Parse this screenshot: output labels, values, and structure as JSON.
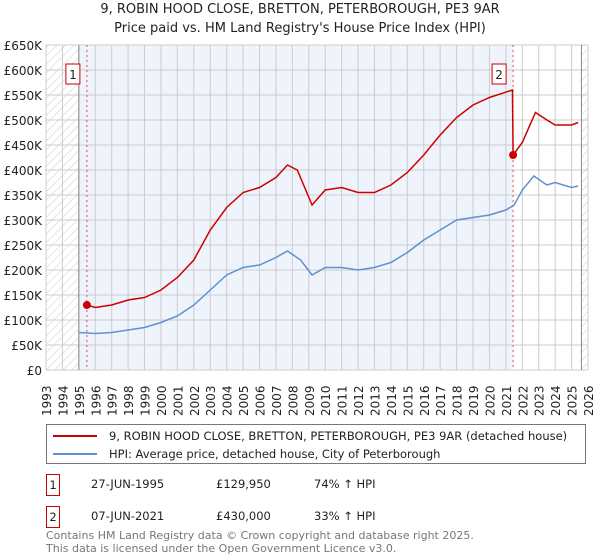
{
  "chart_data": {
    "type": "line",
    "title": "9, ROBIN HOOD CLOSE, BRETTON, PETERBOROUGH, PE3 9AR",
    "subtitle": "Price paid vs. HM Land Registry's House Price Index (HPI)",
    "xlim": [
      1993,
      2026
    ],
    "ylim": [
      0,
      650000
    ],
    "y_ticks": [
      {
        "v": 0,
        "label": "£0"
      },
      {
        "v": 50000,
        "label": "£50K"
      },
      {
        "v": 100000,
        "label": "£100K"
      },
      {
        "v": 150000,
        "label": "£150K"
      },
      {
        "v": 200000,
        "label": "£200K"
      },
      {
        "v": 250000,
        "label": "£250K"
      },
      {
        "v": 300000,
        "label": "£300K"
      },
      {
        "v": 350000,
        "label": "£350K"
      },
      {
        "v": 400000,
        "label": "£400K"
      },
      {
        "v": 450000,
        "label": "£450K"
      },
      {
        "v": 500000,
        "label": "£500K"
      },
      {
        "v": 550000,
        "label": "£550K"
      },
      {
        "v": 600000,
        "label": "£600K"
      },
      {
        "v": 650000,
        "label": "£650K"
      }
    ],
    "x_ticks": [
      "1993",
      "1994",
      "1995",
      "1996",
      "1997",
      "1998",
      "1999",
      "2000",
      "2001",
      "2002",
      "2003",
      "2004",
      "2005",
      "2006",
      "2007",
      "2008",
      "2009",
      "2010",
      "2011",
      "2012",
      "2013",
      "2014",
      "2015",
      "2016",
      "2017",
      "2018",
      "2019",
      "2020",
      "2021",
      "2022",
      "2023",
      "2024",
      "2025",
      "2026"
    ],
    "series": [
      {
        "name": "9, ROBIN HOOD CLOSE, BRETTON, PETERBOROUGH, PE3 9AR (detached house)",
        "color": "#cc0000",
        "x": [
          1995.49,
          1996,
          1997,
          1998,
          1999,
          2000,
          2001,
          2002,
          2003,
          2004,
          2005,
          2006,
          2007,
          2007.7,
          2008.3,
          2009.2,
          2010,
          2011,
          2012,
          2013,
          2014,
          2015,
          2016,
          2017,
          2018,
          2019,
          2020,
          2021.4,
          2021.44,
          2022,
          2022.8,
          2023.5,
          2024,
          2025,
          2025.4
        ],
        "y": [
          129950,
          125000,
          130000,
          140000,
          145000,
          160000,
          185000,
          220000,
          280000,
          325000,
          355000,
          365000,
          385000,
          410000,
          400000,
          330000,
          360000,
          365000,
          355000,
          355000,
          370000,
          395000,
          430000,
          470000,
          505000,
          530000,
          545000,
          560000,
          430000,
          455000,
          515000,
          500000,
          490000,
          490000,
          495000
        ]
      },
      {
        "name": "HPI: Average price, detached house, City of Peterborough",
        "color": "#6090d0",
        "x": [
          1995,
          1996,
          1997,
          1998,
          1999,
          2000,
          2001,
          2002,
          2003,
          2004,
          2005,
          2006,
          2007,
          2007.7,
          2008.5,
          2009.2,
          2010,
          2011,
          2012,
          2013,
          2014,
          2015,
          2016,
          2017,
          2018,
          2019,
          2020,
          2021,
          2021.5,
          2022,
          2022.7,
          2023.5,
          2024,
          2025,
          2025.4
        ],
        "y": [
          75000,
          73000,
          75000,
          80000,
          85000,
          95000,
          108000,
          130000,
          160000,
          190000,
          205000,
          210000,
          225000,
          238000,
          220000,
          190000,
          205000,
          205000,
          200000,
          205000,
          215000,
          235000,
          260000,
          280000,
          300000,
          305000,
          310000,
          320000,
          330000,
          360000,
          388000,
          370000,
          375000,
          365000,
          368000
        ]
      }
    ],
    "markers": [
      {
        "label": "1",
        "x": 1995.49,
        "y": 129950
      },
      {
        "label": "2",
        "x": 2021.44,
        "y": 430000
      }
    ]
  },
  "legend": [
    "9, ROBIN HOOD CLOSE, BRETTON, PETERBOROUGH, PE3 9AR (detached house)",
    "HPI: Average price, detached house, City of Peterborough"
  ],
  "sales": [
    {
      "num": "1",
      "date": "27-JUN-1995",
      "price": "£129,950",
      "hpi": "74% ↑ HPI"
    },
    {
      "num": "2",
      "date": "07-JUN-2021",
      "price": "£430,000",
      "hpi": "33% ↑ HPI"
    }
  ],
  "footer": [
    "Contains HM Land Registry data © Crown copyright and database right 2025.",
    "This data is licensed under the Open Government Licence v3.0."
  ]
}
